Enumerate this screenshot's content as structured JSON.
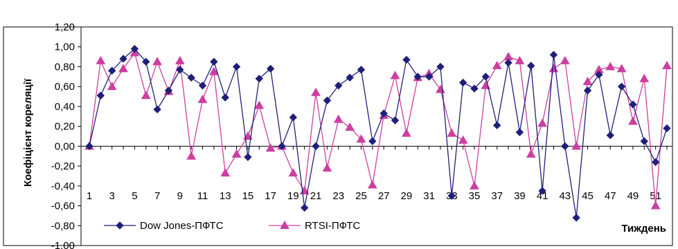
{
  "chart_data": {
    "type": "line",
    "title": "",
    "xlabel": "Тиждень",
    "ylabel": "Коефіцієнт кореляції",
    "ylim": [
      -1.0,
      1.2
    ],
    "ystep": 0.2,
    "x": [
      1,
      2,
      3,
      4,
      5,
      6,
      7,
      8,
      9,
      10,
      11,
      12,
      13,
      14,
      15,
      16,
      17,
      18,
      19,
      20,
      21,
      22,
      23,
      24,
      25,
      26,
      27,
      28,
      29,
      30,
      31,
      32,
      33,
      34,
      35,
      36,
      37,
      38,
      39,
      40,
      41,
      42,
      43,
      44,
      45,
      46,
      47,
      48,
      49,
      50,
      51,
      52
    ],
    "x_tick_labels": [
      "1",
      "3",
      "5",
      "7",
      "9",
      "11",
      "13",
      "15",
      "17",
      "19",
      "21",
      "23",
      "25",
      "27",
      "29",
      "31",
      "33",
      "35",
      "37",
      "39",
      "41",
      "43",
      "45",
      "47",
      "49",
      "51"
    ],
    "y_tick_labels": [
      "1,20",
      "1,00",
      "0,80",
      "0,60",
      "0,40",
      "0,20",
      "0,00",
      "-0,20",
      "-0,40",
      "-0,60",
      "-0,80",
      "-1,00"
    ],
    "grid": false,
    "legend_position": "bottom-left",
    "series": [
      {
        "name": "Dow Jones-ПФТС",
        "color": "#1f1f7a",
        "marker": "diamond",
        "values": [
          0.0,
          0.51,
          0.76,
          0.88,
          0.98,
          0.85,
          0.37,
          0.56,
          0.77,
          0.69,
          0.61,
          0.85,
          0.49,
          0.8,
          -0.11,
          0.68,
          0.78,
          0.0,
          0.29,
          -0.62,
          0.0,
          0.46,
          0.61,
          0.69,
          0.77,
          0.05,
          0.33,
          0.26,
          0.87,
          0.7,
          0.7,
          0.8,
          -0.5,
          0.64,
          0.58,
          0.7,
          0.21,
          0.84,
          0.14,
          0.81,
          -0.45,
          0.92,
          0.0,
          -0.72,
          0.56,
          0.72,
          0.11,
          0.6,
          0.42,
          0.05,
          -0.16,
          0.18
        ]
      },
      {
        "name": "RTSI-ПФТС",
        "color": "#cc3fa0",
        "marker": "triangle",
        "values": [
          0.0,
          0.86,
          0.6,
          0.78,
          0.94,
          0.51,
          0.85,
          0.55,
          0.86,
          -0.1,
          0.47,
          0.75,
          -0.27,
          -0.08,
          0.1,
          0.41,
          -0.02,
          0.0,
          -0.27,
          -0.45,
          0.54,
          -0.22,
          0.27,
          0.19,
          0.07,
          -0.39,
          0.31,
          0.71,
          0.13,
          0.69,
          0.73,
          0.57,
          0.13,
          0.06,
          -0.4,
          0.61,
          0.81,
          0.9,
          0.86,
          -0.08,
          0.23,
          0.78,
          0.86,
          0.0,
          0.65,
          0.77,
          0.8,
          0.78,
          0.25,
          0.68,
          -0.6,
          0.81
        ]
      }
    ]
  }
}
